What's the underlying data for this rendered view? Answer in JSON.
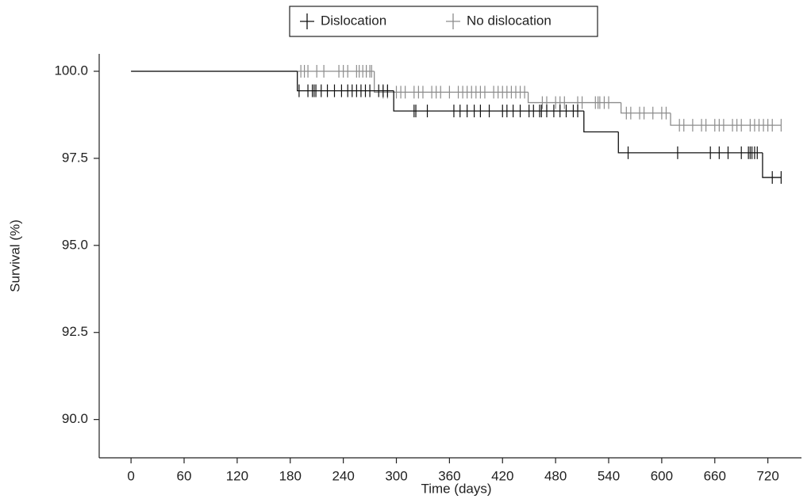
{
  "chart_data": {
    "type": "survival",
    "xlabel": "Time (days)",
    "ylabel": "Survival (%)",
    "xlim": [
      -36,
      758
    ],
    "ylim": [
      88.9,
      100.5
    ],
    "xticks": [
      0,
      60,
      120,
      180,
      240,
      300,
      360,
      420,
      480,
      540,
      600,
      660,
      720
    ],
    "yticks": [
      {
        "value": 90,
        "label": "90.0"
      },
      {
        "value": 92.5,
        "label": "92.5"
      },
      {
        "value": 95,
        "label": "95.0"
      },
      {
        "value": 97.5,
        "label": "97.5"
      },
      {
        "value": 100,
        "label": "100.0"
      }
    ],
    "legend": "top",
    "series": [
      {
        "name": "Dislocation",
        "color": "#111111",
        "x": [
          0,
          188,
          297,
          512,
          551,
          714
        ],
        "values": [
          100,
          99.44,
          98.86,
          98.26,
          97.66,
          96.95
        ],
        "censored": [
          190,
          200,
          205,
          207,
          209,
          215,
          222,
          230,
          238,
          245,
          250,
          255,
          260,
          265,
          270,
          280,
          285,
          290,
          320,
          322,
          335,
          365,
          372,
          380,
          388,
          395,
          405,
          420,
          425,
          432,
          440,
          450,
          455,
          462,
          464,
          470,
          478,
          485,
          492,
          500,
          505,
          562,
          618,
          655,
          665,
          675,
          690,
          698,
          700,
          702,
          705,
          708,
          725,
          735
        ]
      },
      {
        "name": "No dislocation",
        "color": "#8c8c8c",
        "x": [
          0,
          275,
          449,
          554,
          610
        ],
        "values": [
          100,
          99.4,
          99.1,
          98.8,
          98.45
        ],
        "censored": [
          192,
          196,
          200,
          210,
          218,
          235,
          240,
          245,
          255,
          258,
          262,
          266,
          270,
          272,
          285,
          290,
          300,
          305,
          310,
          320,
          325,
          330,
          340,
          345,
          350,
          360,
          370,
          375,
          380,
          385,
          390,
          395,
          400,
          410,
          415,
          420,
          425,
          430,
          435,
          440,
          445,
          465,
          470,
          480,
          485,
          490,
          505,
          510,
          525,
          528,
          530,
          535,
          540,
          560,
          565,
          575,
          580,
          590,
          600,
          605,
          620,
          625,
          635,
          645,
          650,
          660,
          665,
          670,
          680,
          685,
          690,
          700,
          705,
          710,
          715,
          720,
          725,
          735
        ]
      }
    ]
  }
}
